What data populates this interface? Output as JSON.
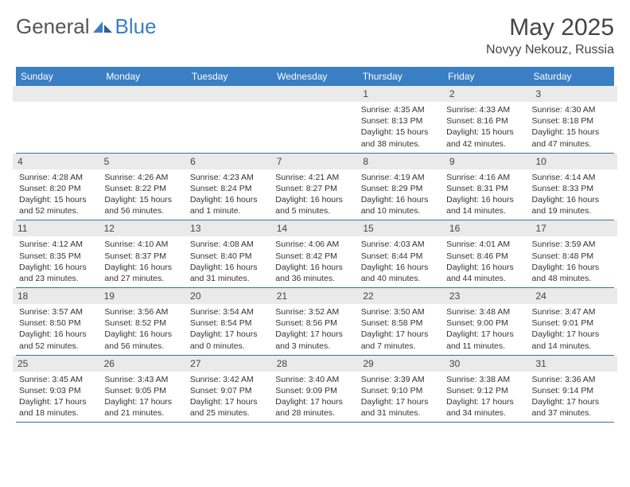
{
  "brand": {
    "part1": "General",
    "part2": "Blue"
  },
  "title": "May 2025",
  "location": "Novyy Nekouz, Russia",
  "colors": {
    "header_bg": "#3a7fc4",
    "row_border": "#3a6fa0",
    "band_bg": "#eaeaea",
    "text": "#333333",
    "title_color": "#444444"
  },
  "typography": {
    "title_fontsize": 30,
    "location_fontsize": 16,
    "header_fontsize": 12,
    "cell_fontsize": 10.5
  },
  "day_labels": [
    "Sunday",
    "Monday",
    "Tuesday",
    "Wednesday",
    "Thursday",
    "Friday",
    "Saturday"
  ],
  "weeks": [
    {
      "nums": [
        "",
        "",
        "",
        "",
        "1",
        "2",
        "3"
      ],
      "cells": [
        null,
        null,
        null,
        null,
        {
          "sunrise": "Sunrise: 4:35 AM",
          "sunset": "Sunset: 8:13 PM",
          "daylight": "Daylight: 15 hours and 38 minutes."
        },
        {
          "sunrise": "Sunrise: 4:33 AM",
          "sunset": "Sunset: 8:16 PM",
          "daylight": "Daylight: 15 hours and 42 minutes."
        },
        {
          "sunrise": "Sunrise: 4:30 AM",
          "sunset": "Sunset: 8:18 PM",
          "daylight": "Daylight: 15 hours and 47 minutes."
        }
      ]
    },
    {
      "nums": [
        "4",
        "5",
        "6",
        "7",
        "8",
        "9",
        "10"
      ],
      "cells": [
        {
          "sunrise": "Sunrise: 4:28 AM",
          "sunset": "Sunset: 8:20 PM",
          "daylight": "Daylight: 15 hours and 52 minutes."
        },
        {
          "sunrise": "Sunrise: 4:26 AM",
          "sunset": "Sunset: 8:22 PM",
          "daylight": "Daylight: 15 hours and 56 minutes."
        },
        {
          "sunrise": "Sunrise: 4:23 AM",
          "sunset": "Sunset: 8:24 PM",
          "daylight": "Daylight: 16 hours and 1 minute."
        },
        {
          "sunrise": "Sunrise: 4:21 AM",
          "sunset": "Sunset: 8:27 PM",
          "daylight": "Daylight: 16 hours and 5 minutes."
        },
        {
          "sunrise": "Sunrise: 4:19 AM",
          "sunset": "Sunset: 8:29 PM",
          "daylight": "Daylight: 16 hours and 10 minutes."
        },
        {
          "sunrise": "Sunrise: 4:16 AM",
          "sunset": "Sunset: 8:31 PM",
          "daylight": "Daylight: 16 hours and 14 minutes."
        },
        {
          "sunrise": "Sunrise: 4:14 AM",
          "sunset": "Sunset: 8:33 PM",
          "daylight": "Daylight: 16 hours and 19 minutes."
        }
      ]
    },
    {
      "nums": [
        "11",
        "12",
        "13",
        "14",
        "15",
        "16",
        "17"
      ],
      "cells": [
        {
          "sunrise": "Sunrise: 4:12 AM",
          "sunset": "Sunset: 8:35 PM",
          "daylight": "Daylight: 16 hours and 23 minutes."
        },
        {
          "sunrise": "Sunrise: 4:10 AM",
          "sunset": "Sunset: 8:37 PM",
          "daylight": "Daylight: 16 hours and 27 minutes."
        },
        {
          "sunrise": "Sunrise: 4:08 AM",
          "sunset": "Sunset: 8:40 PM",
          "daylight": "Daylight: 16 hours and 31 minutes."
        },
        {
          "sunrise": "Sunrise: 4:06 AM",
          "sunset": "Sunset: 8:42 PM",
          "daylight": "Daylight: 16 hours and 36 minutes."
        },
        {
          "sunrise": "Sunrise: 4:03 AM",
          "sunset": "Sunset: 8:44 PM",
          "daylight": "Daylight: 16 hours and 40 minutes."
        },
        {
          "sunrise": "Sunrise: 4:01 AM",
          "sunset": "Sunset: 8:46 PM",
          "daylight": "Daylight: 16 hours and 44 minutes."
        },
        {
          "sunrise": "Sunrise: 3:59 AM",
          "sunset": "Sunset: 8:48 PM",
          "daylight": "Daylight: 16 hours and 48 minutes."
        }
      ]
    },
    {
      "nums": [
        "18",
        "19",
        "20",
        "21",
        "22",
        "23",
        "24"
      ],
      "cells": [
        {
          "sunrise": "Sunrise: 3:57 AM",
          "sunset": "Sunset: 8:50 PM",
          "daylight": "Daylight: 16 hours and 52 minutes."
        },
        {
          "sunrise": "Sunrise: 3:56 AM",
          "sunset": "Sunset: 8:52 PM",
          "daylight": "Daylight: 16 hours and 56 minutes."
        },
        {
          "sunrise": "Sunrise: 3:54 AM",
          "sunset": "Sunset: 8:54 PM",
          "daylight": "Daylight: 17 hours and 0 minutes."
        },
        {
          "sunrise": "Sunrise: 3:52 AM",
          "sunset": "Sunset: 8:56 PM",
          "daylight": "Daylight: 17 hours and 3 minutes."
        },
        {
          "sunrise": "Sunrise: 3:50 AM",
          "sunset": "Sunset: 8:58 PM",
          "daylight": "Daylight: 17 hours and 7 minutes."
        },
        {
          "sunrise": "Sunrise: 3:48 AM",
          "sunset": "Sunset: 9:00 PM",
          "daylight": "Daylight: 17 hours and 11 minutes."
        },
        {
          "sunrise": "Sunrise: 3:47 AM",
          "sunset": "Sunset: 9:01 PM",
          "daylight": "Daylight: 17 hours and 14 minutes."
        }
      ]
    },
    {
      "nums": [
        "25",
        "26",
        "27",
        "28",
        "29",
        "30",
        "31"
      ],
      "cells": [
        {
          "sunrise": "Sunrise: 3:45 AM",
          "sunset": "Sunset: 9:03 PM",
          "daylight": "Daylight: 17 hours and 18 minutes."
        },
        {
          "sunrise": "Sunrise: 3:43 AM",
          "sunset": "Sunset: 9:05 PM",
          "daylight": "Daylight: 17 hours and 21 minutes."
        },
        {
          "sunrise": "Sunrise: 3:42 AM",
          "sunset": "Sunset: 9:07 PM",
          "daylight": "Daylight: 17 hours and 25 minutes."
        },
        {
          "sunrise": "Sunrise: 3:40 AM",
          "sunset": "Sunset: 9:09 PM",
          "daylight": "Daylight: 17 hours and 28 minutes."
        },
        {
          "sunrise": "Sunrise: 3:39 AM",
          "sunset": "Sunset: 9:10 PM",
          "daylight": "Daylight: 17 hours and 31 minutes."
        },
        {
          "sunrise": "Sunrise: 3:38 AM",
          "sunset": "Sunset: 9:12 PM",
          "daylight": "Daylight: 17 hours and 34 minutes."
        },
        {
          "sunrise": "Sunrise: 3:36 AM",
          "sunset": "Sunset: 9:14 PM",
          "daylight": "Daylight: 17 hours and 37 minutes."
        }
      ]
    }
  ]
}
